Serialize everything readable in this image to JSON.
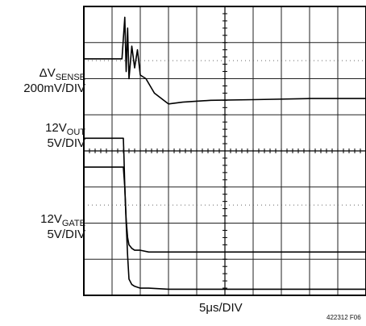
{
  "chart_data": {
    "type": "line",
    "title": "",
    "x_axis": {
      "label": "5μs/DIV",
      "divisions": 10,
      "range": [
        0,
        10
      ]
    },
    "y_axis": {
      "divisions": 8,
      "range": [
        0,
        8
      ]
    },
    "grid": true,
    "figure_id": "422312 F06",
    "channels": [
      {
        "label_main": "ΔV",
        "label_sub": "SENSE",
        "scale": "200mV/DIV",
        "x": [
          0,
          1.35,
          1.45,
          1.5,
          1.55,
          1.6,
          1.7,
          1.8,
          1.9,
          2.0,
          2.2,
          2.5,
          3.0,
          3.5,
          4.5,
          6.0,
          8.0,
          10
        ],
        "y": [
          6.55,
          6.55,
          7.7,
          6.2,
          7.4,
          6.0,
          6.9,
          6.3,
          6.8,
          6.1,
          6.0,
          5.6,
          5.3,
          5.35,
          5.4,
          5.42,
          5.45,
          5.45
        ]
      },
      {
        "label_main": "12V",
        "label_sub": "OUT",
        "scale": "5V/DIV",
        "x": [
          0,
          1.4,
          1.42,
          1.45,
          1.5,
          1.55,
          1.6,
          1.7,
          1.8,
          2.0,
          2.3,
          3.0,
          5.0,
          10
        ],
        "y": [
          4.35,
          4.35,
          3.9,
          3.0,
          2.1,
          1.6,
          1.4,
          1.3,
          1.25,
          1.25,
          1.2,
          1.2,
          1.2,
          1.2
        ]
      },
      {
        "label_main": "12V",
        "label_sub": "GATE",
        "scale": "5V/DIV",
        "x": [
          0,
          1.4,
          1.45,
          1.5,
          1.55,
          1.6,
          1.7,
          1.8,
          2.0,
          2.3,
          3.0,
          5.0,
          10
        ],
        "y": [
          3.55,
          3.55,
          3.0,
          2.0,
          1.1,
          0.45,
          0.3,
          0.25,
          0.2,
          0.2,
          0.17,
          0.17,
          0.17
        ]
      }
    ]
  }
}
